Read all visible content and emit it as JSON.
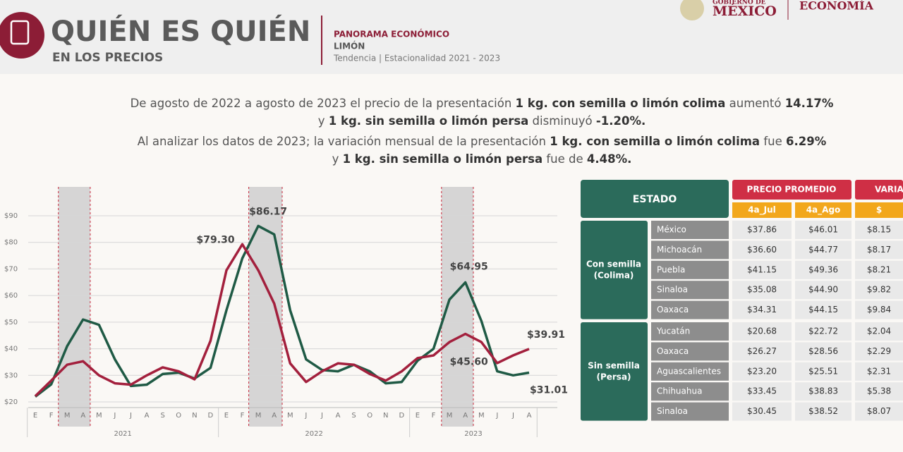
{
  "header": {
    "title": "QUIÉN ES QUIÉN",
    "subtitle": "EN LOS PRECIOS",
    "section": "PANORAMA ECONÓMICO",
    "product": "LIMÓN",
    "period": "Tendencia | Estacionalidad 2021 - 2023"
  },
  "logos": {
    "gobierno_top": "GOBIERNO DE",
    "gobierno_main": "MÉXICO",
    "economia": "ECONOMÍA"
  },
  "intro": [
    [
      {
        "text": "De agosto de 2022 a agosto de 2023 el precio de la presentación ",
        "bold": false
      },
      {
        "text": "1 kg. con semilla o limón colima",
        "bold": true
      },
      {
        "text": " aumentó ",
        "bold": false
      },
      {
        "text": "14.17%",
        "bold": true
      }
    ],
    [
      {
        "text": "y ",
        "bold": false
      },
      {
        "text": "1 kg. sin semilla o limón persa",
        "bold": true
      },
      {
        "text": " disminuyó ",
        "bold": false
      },
      {
        "text": "-1.20%.",
        "bold": true
      }
    ],
    [
      {
        "text": "Al analizar los datos de 2023; la variación mensual de la presentación ",
        "bold": false
      },
      {
        "text": "1 kg. con semilla o limón colima",
        "bold": true
      },
      {
        "text": " fue ",
        "bold": false
      },
      {
        "text": "6.29%",
        "bold": true
      }
    ],
    [
      {
        "text": "y ",
        "bold": false
      },
      {
        "text": "1 kg. sin semilla o limón persa",
        "bold": true
      },
      {
        "text": " fue de ",
        "bold": false
      },
      {
        "text": "4.48%.",
        "bold": true
      }
    ]
  ],
  "chart_data": {
    "type": "line",
    "categories": [
      "E",
      "F",
      "M",
      "A",
      "M",
      "J",
      "J",
      "A",
      "S",
      "O",
      "N",
      "D",
      "E",
      "F",
      "M",
      "A",
      "M",
      "J",
      "J",
      "A",
      "S",
      "O",
      "N",
      "D",
      "E",
      "F",
      "M",
      "A",
      "M",
      "J",
      "J",
      "A"
    ],
    "years": [
      "2021",
      "2022",
      "2023"
    ],
    "series": [
      {
        "color": "#1f5a45",
        "values": [
          22,
          26.6,
          41,
          51,
          49,
          36,
          26,
          26.5,
          30.5,
          31,
          28.8,
          32.8,
          54.5,
          74,
          86.17,
          83,
          54.5,
          36,
          32,
          31.5,
          34,
          31.5,
          27,
          27.5,
          35.5,
          40,
          58.5,
          64.95,
          50.5,
          31.5,
          30,
          31.01
        ],
        "value_labels": [
          null,
          null,
          null,
          null,
          null,
          null,
          null,
          null,
          null,
          null,
          null,
          null,
          null,
          null,
          "$86.17",
          null,
          null,
          null,
          null,
          null,
          null,
          null,
          null,
          null,
          null,
          null,
          null,
          "$64.95",
          null,
          null,
          null,
          "$31.01"
        ]
      },
      {
        "color": "#a3203d",
        "values": [
          22.2,
          28,
          34,
          35.3,
          30,
          27,
          26.5,
          30,
          33,
          31.5,
          28.5,
          43,
          69.5,
          79.3,
          69.5,
          57,
          34.5,
          27.5,
          31.5,
          34.5,
          34,
          30.5,
          28,
          31.5,
          36.5,
          37.5,
          42.5,
          45.6,
          42.5,
          34.6,
          37.5,
          39.91
        ],
        "value_labels": [
          null,
          null,
          null,
          null,
          null,
          null,
          null,
          null,
          null,
          null,
          null,
          null,
          null,
          "$79.30",
          null,
          null,
          null,
          null,
          null,
          null,
          null,
          null,
          null,
          null,
          null,
          null,
          null,
          "$45.60",
          null,
          null,
          null,
          "$39.91"
        ]
      }
    ],
    "ylim": [
      20,
      90
    ],
    "yticks": [
      {
        "value": 20,
        "label": "$20"
      },
      {
        "value": 30,
        "label": "$30"
      },
      {
        "value": 40,
        "label": "$40"
      },
      {
        "value": 50,
        "label": "$50"
      },
      {
        "value": 60,
        "label": "$60"
      },
      {
        "value": 70,
        "label": "$70"
      },
      {
        "value": 80,
        "label": "$80"
      },
      {
        "value": 90,
        "label": "$90"
      }
    ],
    "grid": true
  },
  "table": {
    "estado": "ESTADO",
    "precio": "PRECIO PROMEDIO",
    "variacion": "VARIA",
    "sub": [
      "4a_Jul",
      "4a_Ago",
      "$"
    ],
    "groups": [
      {
        "label": [
          "Con semilla",
          "(Colima)"
        ],
        "rows": [
          [
            "México",
            "$37.86",
            "$46.01",
            "$8.15"
          ],
          [
            "Michoacán",
            "$36.60",
            "$44.77",
            "$8.17"
          ],
          [
            "Puebla",
            "$41.15",
            "$49.36",
            "$8.21"
          ],
          [
            "Sinaloa",
            "$35.08",
            "$44.90",
            "$9.82"
          ],
          [
            "Oaxaca",
            "$34.31",
            "$44.15",
            "$9.84"
          ]
        ]
      },
      {
        "label": [
          "Sin semilla",
          "(Persa)"
        ],
        "rows": [
          [
            "Yucatán",
            "$20.68",
            "$22.72",
            "$2.04"
          ],
          [
            "Oaxaca",
            "$26.27",
            "$28.56",
            "$2.29"
          ],
          [
            "Aguascalientes",
            "$23.20",
            "$25.51",
            "$2.31"
          ],
          [
            "Chihuahua",
            "$33.45",
            "$38.83",
            "$5.38"
          ],
          [
            "Sinaloa",
            "$30.45",
            "$38.52",
            "$8.07"
          ]
        ]
      }
    ]
  }
}
